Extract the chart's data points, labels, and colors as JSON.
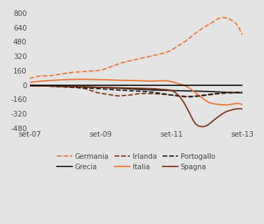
{
  "ylim": [
    -480,
    800
  ],
  "yticks": [
    -480,
    -320,
    -160,
    0,
    160,
    320,
    480,
    640,
    800
  ],
  "xtick_labels": [
    "set-07",
    "set-09",
    "set-11",
    "set-13"
  ],
  "background_color": "#e4e4e4",
  "plot_bg_color": "#e4e4e4",
  "series": [
    {
      "name": "Germania",
      "color": "#f07030",
      "linestyle": "--",
      "linewidth": 1.3,
      "data_x": [
        0,
        2,
        4,
        6,
        8,
        10,
        12,
        14,
        16,
        18,
        20,
        22,
        24,
        26,
        28,
        30,
        32,
        34,
        36,
        38,
        40,
        42,
        44,
        46,
        48,
        50,
        52,
        54,
        56,
        58,
        60,
        62,
        64,
        66,
        68,
        70,
        72
      ],
      "data_y": [
        80,
        90,
        105,
        100,
        110,
        120,
        130,
        140,
        145,
        150,
        155,
        160,
        165,
        185,
        210,
        235,
        255,
        270,
        285,
        300,
        315,
        330,
        345,
        360,
        390,
        430,
        470,
        520,
        570,
        620,
        660,
        700,
        740,
        750,
        730,
        680,
        560
      ]
    },
    {
      "name": "Grecia",
      "color": "#1a1a1a",
      "linestyle": "-",
      "linewidth": 1.3,
      "data_x": [
        0,
        6,
        12,
        18,
        24,
        30,
        36,
        42,
        48,
        54,
        60,
        66,
        72
      ],
      "data_y": [
        -5,
        -10,
        -15,
        -20,
        -25,
        -35,
        -45,
        -55,
        -60,
        -65,
        -70,
        -80,
        -85
      ]
    },
    {
      "name": "Irlanda",
      "color": "#7b3010",
      "linestyle": "--",
      "linewidth": 1.3,
      "data_x": [
        0,
        6,
        12,
        18,
        20,
        22,
        24,
        26,
        28,
        30,
        32,
        34,
        36,
        42,
        48,
        54,
        60,
        66,
        72
      ],
      "data_y": [
        -5,
        -10,
        -20,
        -35,
        -50,
        -75,
        -90,
        -100,
        -110,
        -120,
        -115,
        -110,
        -100,
        -95,
        -110,
        -125,
        -105,
        -85,
        -80
      ]
    },
    {
      "name": "Italia",
      "color": "#f07030",
      "linestyle": "-",
      "linewidth": 1.3,
      "data_x": [
        0,
        6,
        12,
        18,
        24,
        30,
        36,
        42,
        48,
        50,
        52,
        54,
        56,
        58,
        60,
        62,
        64,
        66,
        68,
        70,
        72
      ],
      "data_y": [
        30,
        50,
        60,
        65,
        60,
        55,
        50,
        45,
        40,
        20,
        0,
        -30,
        -80,
        -130,
        -180,
        -205,
        -215,
        -220,
        -215,
        -205,
        -215
      ]
    },
    {
      "name": "Portogallo",
      "color": "#1a1a1a",
      "linestyle": "--",
      "linewidth": 1.3,
      "data_x": [
        0,
        6,
        12,
        18,
        24,
        30,
        36,
        42,
        48,
        54,
        60,
        66,
        72
      ],
      "data_y": [
        -5,
        -10,
        -20,
        -30,
        -40,
        -55,
        -65,
        -80,
        -110,
        -130,
        -110,
        -90,
        -80
      ]
    },
    {
      "name": "Spagna",
      "color": "#7b3010",
      "linestyle": "-",
      "linewidth": 1.3,
      "data_x": [
        0,
        6,
        12,
        18,
        24,
        30,
        36,
        42,
        44,
        46,
        48,
        50,
        52,
        54,
        56,
        58,
        60,
        62,
        64,
        66,
        68,
        70,
        72
      ],
      "data_y": [
        -5,
        -10,
        -15,
        -20,
        -25,
        -30,
        -35,
        -40,
        -45,
        -50,
        -60,
        -100,
        -180,
        -300,
        -420,
        -460,
        -450,
        -400,
        -350,
        -305,
        -280,
        -265,
        -265
      ]
    }
  ],
  "legend_order": [
    {
      "name": "Germania",
      "color": "#f07030",
      "linestyle": "--"
    },
    {
      "name": "Grecia",
      "color": "#1a1a1a",
      "linestyle": "-"
    },
    {
      "name": "Irlanda",
      "color": "#7b3010",
      "linestyle": "--"
    },
    {
      "name": "Italia",
      "color": "#f07030",
      "linestyle": "-"
    },
    {
      "name": "Portogallo",
      "color": "#1a1a1a",
      "linestyle": "--"
    },
    {
      "name": "Spagna",
      "color": "#7b3010",
      "linestyle": "-"
    }
  ]
}
